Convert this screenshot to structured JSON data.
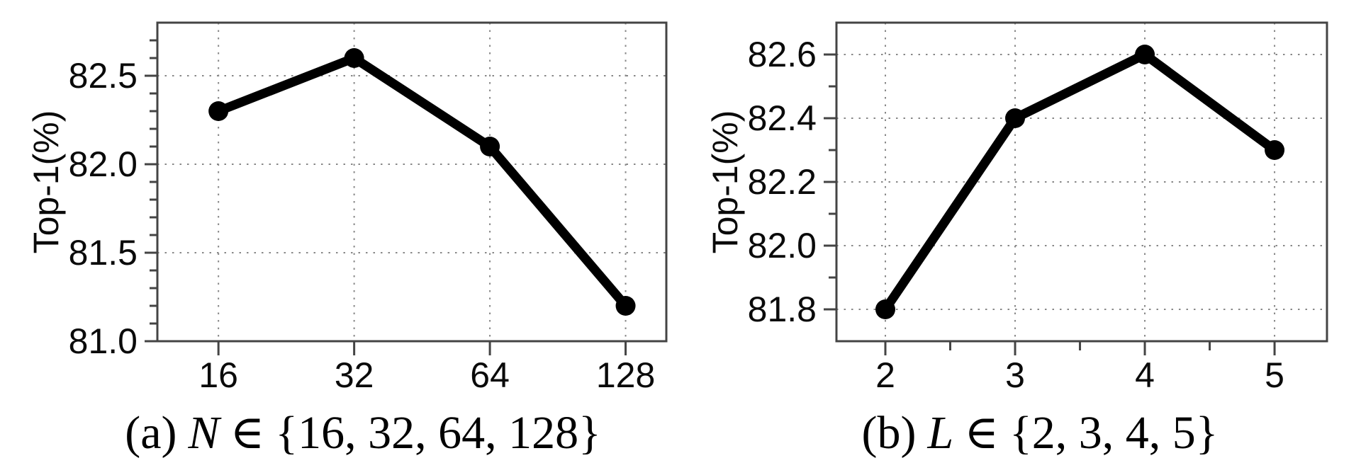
{
  "figure": {
    "background": "#ffffff",
    "colors": {
      "axis": "#444444",
      "grid": "#888888",
      "line": "#000000",
      "marker": "#000000",
      "text": "#0a0a0a"
    }
  },
  "chart_data": [
    {
      "id": "a",
      "type": "line",
      "title": "",
      "xlabel": "",
      "ylabel": "Top-1(%)",
      "categories": [
        "16",
        "32",
        "64",
        "128"
      ],
      "values": [
        82.3,
        82.6,
        82.1,
        81.2
      ],
      "ylim": [
        81.0,
        82.8
      ],
      "yticks": [
        81.0,
        81.5,
        82.0,
        82.5
      ],
      "ytick_labels": [
        "81.0",
        "81.5",
        "82.0",
        "82.5"
      ],
      "yminor_step": 0.1,
      "xminor_half_ticks": false,
      "grid": "dotted",
      "legend_position": "none",
      "caption": {
        "index": "(a)",
        "variable": "N",
        "relation": "∈",
        "set": "{16, 32, 64, 128}"
      }
    },
    {
      "id": "b",
      "type": "line",
      "title": "",
      "xlabel": "",
      "ylabel": "Top-1(%)",
      "categories": [
        "2",
        "3",
        "4",
        "5"
      ],
      "values": [
        81.8,
        82.4,
        82.6,
        82.3
      ],
      "ylim": [
        81.7,
        82.7
      ],
      "yticks": [
        81.8,
        82.0,
        82.2,
        82.4,
        82.6
      ],
      "ytick_labels": [
        "81.8",
        "82.0",
        "82.2",
        "82.4",
        "82.6"
      ],
      "yminor_step": 0.1,
      "xminor_half_ticks": true,
      "grid": "dotted",
      "legend_position": "none",
      "caption": {
        "index": "(b)",
        "variable": "L",
        "relation": "∈",
        "set": "{2, 3, 4, 5}"
      }
    }
  ]
}
